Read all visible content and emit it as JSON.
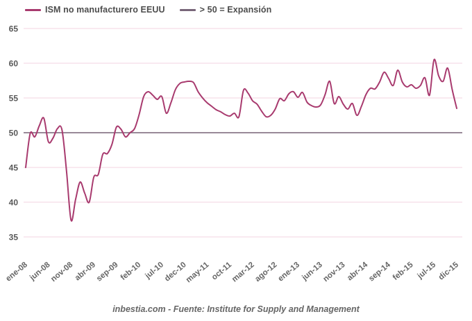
{
  "chart_data": {
    "type": "line",
    "title": "",
    "xlabel": "",
    "ylabel": "",
    "grid": "horizontal",
    "legend_position": "top-left",
    "colors": {
      "background": "#ffffff",
      "gridline": "#f5dce8",
      "axis_text": "#666666",
      "legend_text": "#4d4d4d"
    },
    "yticks": [
      35,
      40,
      45,
      50,
      55,
      60,
      65
    ],
    "ylim": [
      35,
      65
    ],
    "xticks": [
      {
        "index": 0,
        "label": "ene-08"
      },
      {
        "index": 5,
        "label": "jun-08"
      },
      {
        "index": 10,
        "label": "nov-08"
      },
      {
        "index": 15,
        "label": "abr-09"
      },
      {
        "index": 20,
        "label": "sep-09"
      },
      {
        "index": 25,
        "label": "feb-10"
      },
      {
        "index": 30,
        "label": "jul-10"
      },
      {
        "index": 35,
        "label": "dec-10"
      },
      {
        "index": 40,
        "label": "may-11"
      },
      {
        "index": 45,
        "label": "oct-11"
      },
      {
        "index": 50,
        "label": "mar-12"
      },
      {
        "index": 55,
        "label": "ago-12"
      },
      {
        "index": 60,
        "label": "ene-13"
      },
      {
        "index": 65,
        "label": "jun-13"
      },
      {
        "index": 70,
        "label": "nov-13"
      },
      {
        "index": 75,
        "label": "abr-14"
      },
      {
        "index": 80,
        "label": "sep-14"
      },
      {
        "index": 85,
        "label": "feb-15"
      },
      {
        "index": 90,
        "label": "jul-15"
      },
      {
        "index": 95,
        "label": "dic-15"
      }
    ],
    "series": [
      {
        "name": "ISM no manufacturero EEUU",
        "color": "#a83a6e",
        "values": [
          45.0,
          49.9,
          49.4,
          51.0,
          52.1,
          48.7,
          49.2,
          50.6,
          50.4,
          44.5,
          37.4,
          40.4,
          42.9,
          41.3,
          40.0,
          43.6,
          44.0,
          46.9,
          47.0,
          48.3,
          50.8,
          50.5,
          49.4,
          50.0,
          50.6,
          52.6,
          55.2,
          55.9,
          55.4,
          54.8,
          55.2,
          52.8,
          54.3,
          56.2,
          57.1,
          57.3,
          57.4,
          57.2,
          55.9,
          55.0,
          54.3,
          53.8,
          53.3,
          53.0,
          52.6,
          52.4,
          52.8,
          52.3,
          56.1,
          55.7,
          54.6,
          54.1,
          53.1,
          52.3,
          52.5,
          53.4,
          54.9,
          54.6,
          55.6,
          55.9,
          55.1,
          55.8,
          54.4,
          53.9,
          53.7,
          54.0,
          55.5,
          57.4,
          54.2,
          55.2,
          54.1,
          53.4,
          54.2,
          52.5,
          53.8,
          55.5,
          56.4,
          56.3,
          57.3,
          58.7,
          57.8,
          56.8,
          59.0,
          57.3,
          56.6,
          56.9,
          56.4,
          56.8,
          57.9,
          55.4,
          60.5,
          58.2,
          57.4,
          59.3,
          56.2,
          53.5
        ]
      }
    ],
    "reference_line": {
      "name": "> 50 = Expansión",
      "color": "#786579",
      "value": 50
    }
  },
  "footer": {
    "text": "inbestia.com - Fuente: Institute for Supply and Management"
  }
}
